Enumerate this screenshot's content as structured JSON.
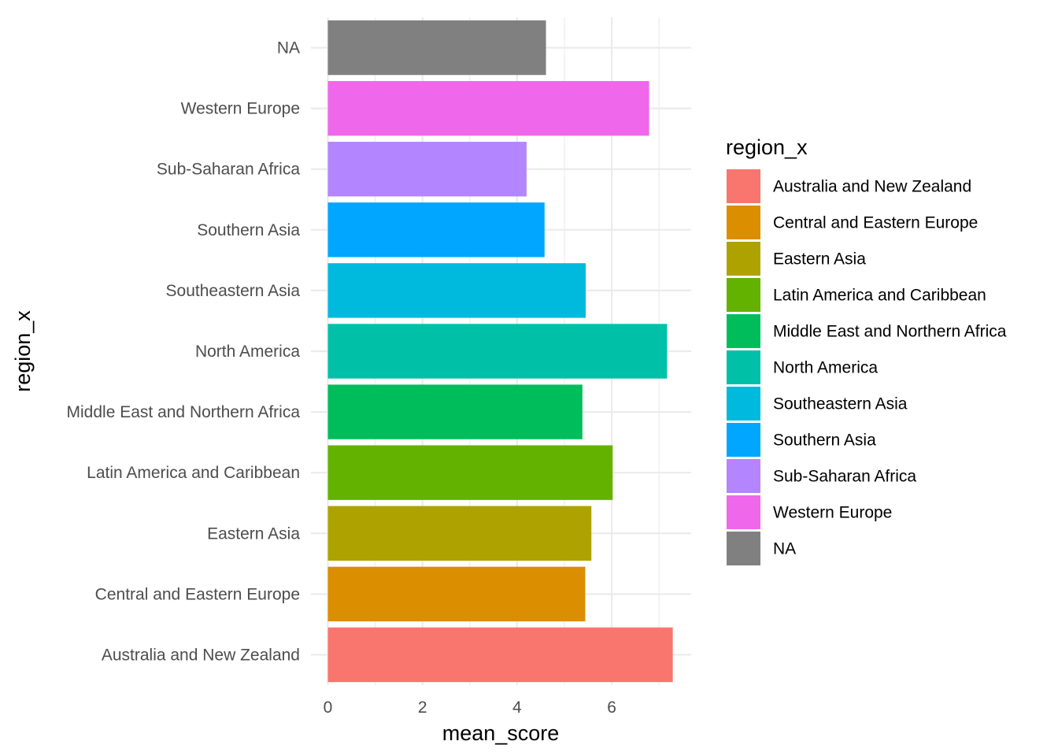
{
  "chart_data": {
    "type": "bar",
    "orientation": "horizontal",
    "xlabel": "mean_score",
    "ylabel": "region_x",
    "xlim": [
      0,
      7.6
    ],
    "xticks": [
      0,
      2,
      4,
      6
    ],
    "grid": true,
    "categories": [
      "Australia and New Zealand",
      "Central and Eastern Europe",
      "Eastern Asia",
      "Latin America and Caribbean",
      "Middle East and Northern Africa",
      "North America",
      "Southeastern Asia",
      "Southern Asia",
      "Sub-Saharan Africa",
      "Western Europe",
      "NA"
    ],
    "values": [
      7.29,
      5.44,
      5.57,
      6.02,
      5.38,
      7.17,
      5.45,
      4.58,
      4.2,
      6.79,
      4.61
    ],
    "colors": [
      "#F8766D",
      "#DB8E00",
      "#AEA200",
      "#64B200",
      "#00BD5C",
      "#00C1A7",
      "#00BADE",
      "#00A6FF",
      "#B385FF",
      "#EF67EB",
      "#808080"
    ],
    "legend": {
      "title": "region_x",
      "placement": "right",
      "entries": [
        "Australia and New Zealand",
        "Central and Eastern Europe",
        "Eastern Asia",
        "Latin America and Caribbean",
        "Middle East and Northern Africa",
        "North America",
        "Southeastern Asia",
        "Southern Asia",
        "Sub-Saharan Africa",
        "Western Europe",
        "NA"
      ]
    }
  }
}
